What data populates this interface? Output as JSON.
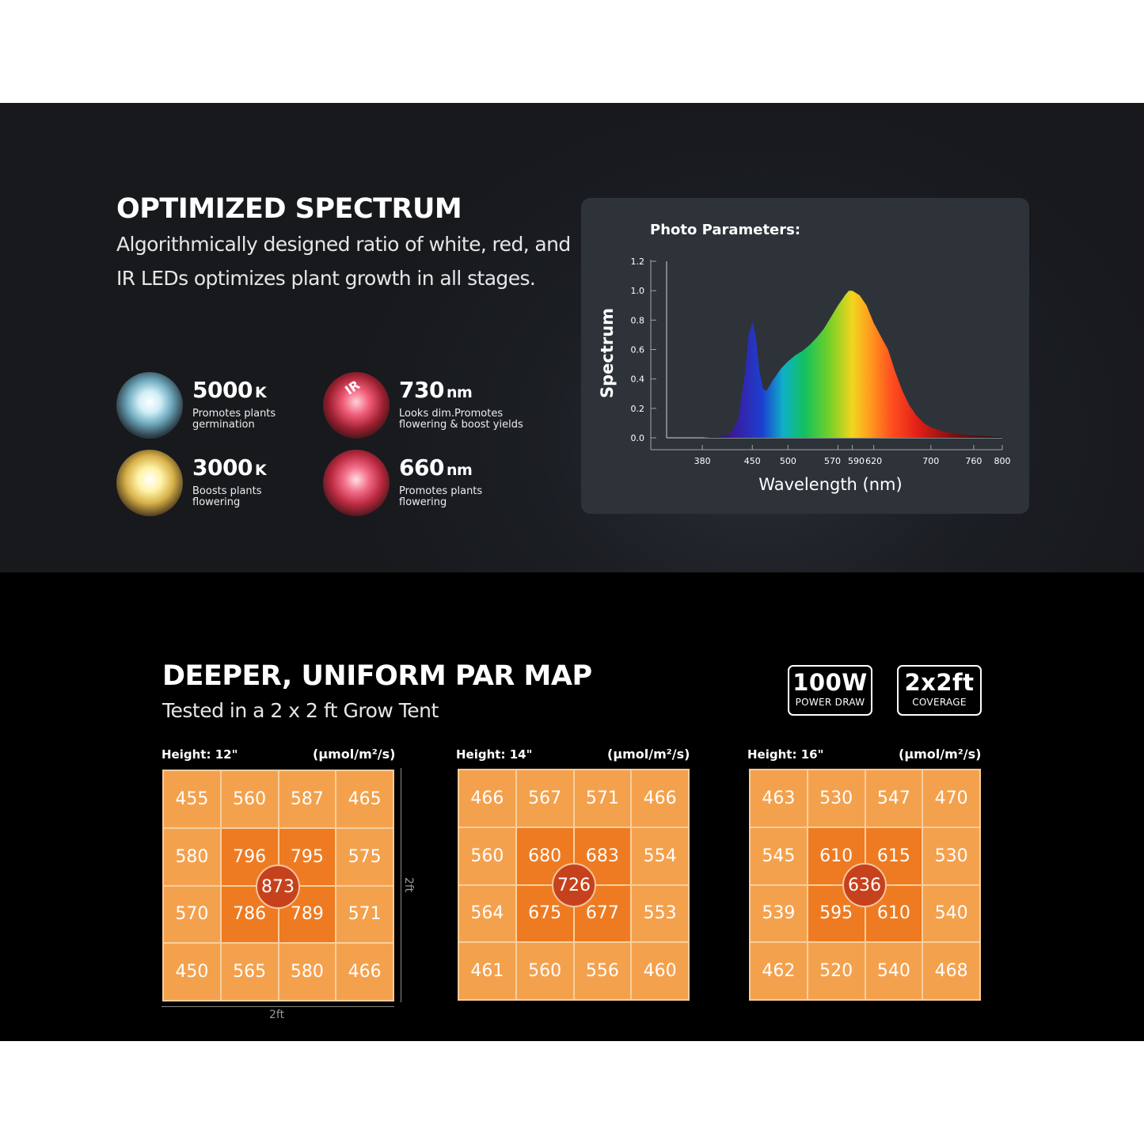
{
  "spectrum": {
    "title": "OPTIMIZED SPECTRUM",
    "subtitle_line1": "Algorithmically designed ratio of white, red, and",
    "subtitle_line2": "IR LEDs optimizes plant growth in all stages."
  },
  "features": [
    {
      "value": "5000",
      "unit": "K",
      "desc_line1": "Promotes plants",
      "desc_line2": "germination",
      "led_color": "#bfe3ef"
    },
    {
      "value": "730",
      "unit": "nm",
      "desc_line1": "Looks dim.Promotes",
      "desc_line2": "flowering & boost yields",
      "led_color": "#e0485e",
      "chip_label": "IR"
    },
    {
      "value": "3000",
      "unit": "K",
      "desc_line1": "Boosts plants",
      "desc_line2": "flowering",
      "led_color": "#fff1a6"
    },
    {
      "value": "660",
      "unit": "nm",
      "desc_line1": "Promotes plants",
      "desc_line2": "flowering",
      "led_color": "#ef5a78"
    }
  ],
  "chart_data": {
    "type": "area",
    "title": "Photo Parameters:",
    "xlabel": "Wavelength (nm)",
    "ylabel": "Spectrum",
    "x_ticks": [
      380,
      450,
      500,
      570,
      590,
      620,
      700,
      760,
      800
    ],
    "y_ticks": [
      "0.0",
      "0.2",
      "0.4",
      "0.6",
      "0.8",
      "1.0",
      "1.2"
    ],
    "xlim": [
      330,
      800
    ],
    "ylim": [
      0,
      1.2
    ],
    "grid": false,
    "x": [
      380,
      400,
      420,
      430,
      440,
      445,
      450,
      455,
      460,
      465,
      470,
      480,
      490,
      500,
      510,
      520,
      530,
      540,
      550,
      560,
      570,
      580,
      585,
      590,
      600,
      610,
      620,
      630,
      640,
      650,
      660,
      670,
      680,
      690,
      700,
      720,
      740,
      760,
      780,
      800
    ],
    "y": [
      0.0,
      0.005,
      0.03,
      0.12,
      0.45,
      0.7,
      0.79,
      0.68,
      0.45,
      0.33,
      0.32,
      0.4,
      0.47,
      0.52,
      0.56,
      0.59,
      0.63,
      0.68,
      0.74,
      0.82,
      0.9,
      0.97,
      1.0,
      1.0,
      0.97,
      0.9,
      0.78,
      0.69,
      0.6,
      0.45,
      0.32,
      0.22,
      0.15,
      0.1,
      0.07,
      0.04,
      0.025,
      0.015,
      0.01,
      0.005
    ]
  },
  "par": {
    "title": "DEEPER, UNIFORM PAR MAP",
    "subtitle": "Tested in a 2 x 2 ft Grow Tent",
    "height_label": "Height:",
    "unit": "(µmol/m²/s)",
    "dimension": "2ft",
    "maps": [
      {
        "height": "12\"",
        "center": "873",
        "values": [
          "455",
          "560",
          "587",
          "465",
          "580",
          "796",
          "795",
          "575",
          "570",
          "786",
          "789",
          "571",
          "450",
          "565",
          "580",
          "466"
        ]
      },
      {
        "height": "14\"",
        "center": "726",
        "values": [
          "466",
          "567",
          "571",
          "466",
          "560",
          "680",
          "683",
          "554",
          "564",
          "675",
          "677",
          "553",
          "461",
          "560",
          "556",
          "460"
        ]
      },
      {
        "height": "16\"",
        "center": "636",
        "values": [
          "463",
          "530",
          "547",
          "470",
          "545",
          "610",
          "615",
          "530",
          "539",
          "595",
          "610",
          "540",
          "462",
          "520",
          "540",
          "468"
        ]
      }
    ]
  },
  "badges": [
    {
      "value": "100W",
      "label": "POWER DRAW"
    },
    {
      "value": "2x2ft",
      "label": "COVERAGE"
    }
  ]
}
